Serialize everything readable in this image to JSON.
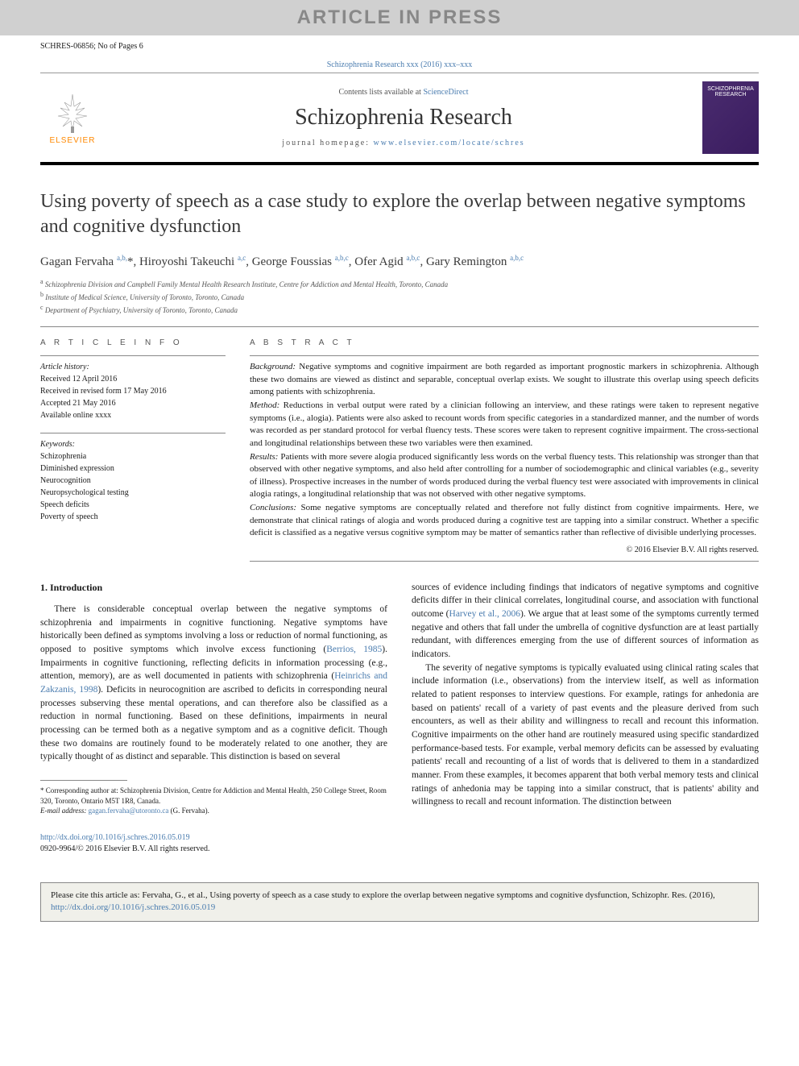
{
  "banner": {
    "article_in_press": "ARTICLE IN PRESS",
    "schres_id": "SCHRES-06856; No of Pages 6",
    "journal_ref": "Schizophrenia Research xxx (2016) xxx–xxx",
    "contents_line_prefix": "Contents lists available at ",
    "contents_line_link": "ScienceDirect",
    "journal_name": "Schizophrenia Research",
    "homepage_label": "journal homepage: ",
    "homepage_url": "www.elsevier.com/locate/schres",
    "elsevier_label": "ELSEVIER",
    "cover_text": "SCHIZOPHRENIA RESEARCH"
  },
  "title": "Using poverty of speech as a case study to explore the overlap between negative symptoms and cognitive dysfunction",
  "authors_html": "Gagan Fervaha <sup>a,b,</sup>*, Hiroyoshi Takeuchi <sup>a,c</sup>, George Foussias <sup>a,b,c</sup>, Ofer Agid <sup>a,b,c</sup>, Gary Remington <sup>a,b,c</sup>",
  "affiliations": {
    "a": "Schizophrenia Division and Campbell Family Mental Health Research Institute, Centre for Addiction and Mental Health, Toronto, Canada",
    "b": "Institute of Medical Science, University of Toronto, Toronto, Canada",
    "c": "Department of Psychiatry, University of Toronto, Toronto, Canada"
  },
  "article_info": {
    "heading": "A R T I C L E   I N F O",
    "history_label": "Article history:",
    "history": [
      "Received 12 April 2016",
      "Received in revised form 17 May 2016",
      "Accepted 21 May 2016",
      "Available online xxxx"
    ],
    "keywords_label": "Keywords:",
    "keywords": [
      "Schizophrenia",
      "Diminished expression",
      "Neurocognition",
      "Neuropsychological testing",
      "Speech deficits",
      "Poverty of speech"
    ]
  },
  "abstract": {
    "heading": "A B S T R A C T",
    "background_label": "Background:",
    "background": " Negative symptoms and cognitive impairment are both regarded as important prognostic markers in schizophrenia. Although these two domains are viewed as distinct and separable, conceptual overlap exists. We sought to illustrate this overlap using speech deficits among patients with schizophrenia.",
    "method_label": "Method:",
    "method": " Reductions in verbal output were rated by a clinician following an interview, and these ratings were taken to represent negative symptoms (i.e., alogia). Patients were also asked to recount words from specific categories in a standardized manner, and the number of words was recorded as per standard protocol for verbal fluency tests. These scores were taken to represent cognitive impairment. The cross-sectional and longitudinal relationships between these two variables were then examined.",
    "results_label": "Results:",
    "results": " Patients with more severe alogia produced significantly less words on the verbal fluency tests. This relationship was stronger than that observed with other negative symptoms, and also held after controlling for a number of sociodemographic and clinical variables (e.g., severity of illness). Prospective increases in the number of words produced during the verbal fluency test were associated with improvements in clinical alogia ratings, a longitudinal relationship that was not observed with other negative symptoms.",
    "conclusions_label": "Conclusions:",
    "conclusions": " Some negative symptoms are conceptually related and therefore not fully distinct from cognitive impairments. Here, we demonstrate that clinical ratings of alogia and words produced during a cognitive test are tapping into a similar construct. Whether a specific deficit is classified as a negative versus cognitive symptom may be matter of semantics rather than reflective of divisible underlying processes.",
    "copyright": "© 2016 Elsevier B.V. All rights reserved."
  },
  "section1": {
    "heading": "1. Introduction",
    "p1a": "There is considerable conceptual overlap between the negative symptoms of schizophrenia and impairments in cognitive functioning. Negative symptoms have historically been defined as symptoms involving a loss or reduction of normal functioning, as opposed to positive symptoms which involve excess functioning (",
    "p1_ref1": "Berrios, 1985",
    "p1b": "). Impairments in cognitive functioning, reflecting deficits in information processing (e.g., attention, memory), are as well documented in patients with schizophrenia (",
    "p1_ref2": "Heinrichs and Zakzanis, 1998",
    "p1c": "). Deficits in neurocognition are ascribed to deficits in corresponding neural processes subserving these mental operations, and can therefore also be classified as a reduction in normal functioning. Based on these definitions, impairments in neural processing can be termed both as a negative symptom and as a cognitive deficit. Though these two domains are routinely found to be moderately related to one another, they are typically thought of as distinct and separable. This distinction is based on several",
    "p1d": "sources of evidence including findings that indicators of negative symptoms and cognitive deficits differ in their clinical correlates, longitudinal course, and association with functional outcome (",
    "p1_ref3": "Harvey et al., 2006",
    "p1e": "). We argue that at least some of the symptoms currently termed negative and others that fall under the umbrella of cognitive dysfunction are at least partially redundant, with differences emerging from the use of different sources of information as indicators.",
    "p2": "The severity of negative symptoms is typically evaluated using clinical rating scales that include information (i.e., observations) from the interview itself, as well as information related to patient responses to interview questions. For example, ratings for anhedonia are based on patients' recall of a variety of past events and the pleasure derived from such encounters, as well as their ability and willingness to recall and recount this information. Cognitive impairments on the other hand are routinely measured using specific standardized performance-based tests. For example, verbal memory deficits can be assessed by evaluating patients' recall and recounting of a list of words that is delivered to them in a standardized manner. From these examples, it becomes apparent that both verbal memory tests and clinical ratings of anhedonia may be tapping into a similar construct, that is patients' ability and willingness to recall and recount information. The distinction between"
  },
  "footnote": {
    "corr_label": "* Corresponding author at: ",
    "corr_text": "Schizophrenia Division, Centre for Addiction and Mental Health, 250 College Street, Room 320, Toronto, Ontario M5T 1R8, Canada.",
    "email_label": "E-mail address: ",
    "email": "gagan.fervaha@utoronto.ca",
    "email_suffix": " (G. Fervaha)."
  },
  "doi": {
    "url": "http://dx.doi.org/10.1016/j.schres.2016.05.019",
    "issn": "0920-9964/© 2016 Elsevier B.V. All rights reserved."
  },
  "cite_box": {
    "text_a": "Please cite this article as: Fervaha, G., et al., Using poverty of speech as a case study to explore the overlap between negative symptoms and cognitive dysfunction, Schizophr. Res. (2016), ",
    "url": "http://dx.doi.org/10.1016/j.schres.2016.05.019"
  },
  "colors": {
    "link": "#4a7caf",
    "banner_bg": "#d0d0d0",
    "banner_text": "#888888",
    "elsevier_orange": "#ff8800",
    "cover_bg": "#4a2c6f",
    "cite_bg": "#f0f0ea"
  }
}
